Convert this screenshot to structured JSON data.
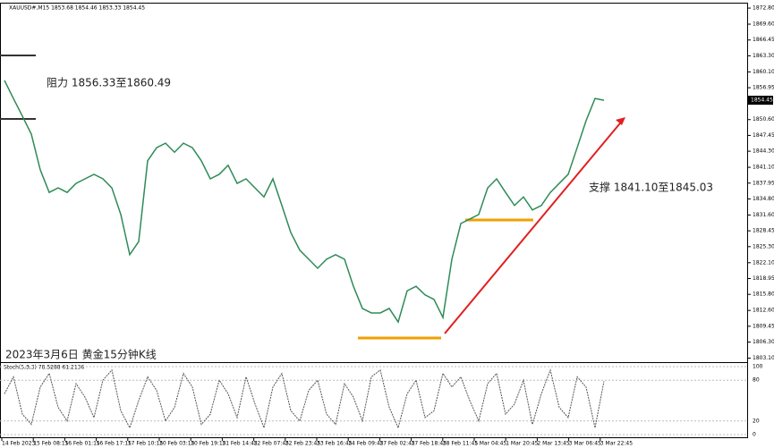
{
  "chart_data": {
    "type": "line",
    "header": "XAUUSD#,M15 1853.68 1854.46 1853.33 1854.45",
    "annotations": [
      "阻力 1856.33至1860.49",
      "支撑 1841.10至1845.03",
      "2023年3月6日 黄金15分钟K线"
    ],
    "current_price": 1854.45,
    "ylim": [
      1802.3,
      1873.7
    ],
    "yticks": [
      {
        "value": 1872.8,
        "label": "1872.80"
      },
      {
        "value": 1869.6,
        "label": "1869.60"
      },
      1866.45,
      {
        "value": 1863.3,
        "label": "1863.30"
      },
      {
        "value": 1860.1,
        "label": "1860.10"
      },
      1856.95,
      {
        "value": 1850.6,
        "label": "1850.60"
      },
      1847.45,
      {
        "value": 1844.3,
        "label": "1844.30"
      },
      {
        "value": 1841.1,
        "label": "1841.10"
      },
      1837.95,
      {
        "value": 1834.8,
        "label": "1834.80"
      },
      {
        "value": 1831.6,
        "label": "1831.60"
      },
      1828.45,
      {
        "value": 1825.3,
        "label": "1825.30"
      },
      {
        "value": 1822.1,
        "label": "1822.10"
      },
      1818.95,
      {
        "value": 1815.8,
        "label": "1815.80"
      },
      {
        "value": 1812.6,
        "label": "1812.60"
      },
      1809.45,
      {
        "value": 1806.3,
        "label": "1806.30"
      },
      {
        "value": 1803.1,
        "label": "1803.10"
      }
    ],
    "xtick_labels": [
      "14 Feb 2023",
      "15 Feb 08:15",
      "16 Feb 01:15",
      "16 Feb 17:15",
      "17 Feb 10:15",
      "20 Feb 03:15",
      "20 Feb 19:15",
      "21 Feb 14:45",
      "22 Feb 07:45",
      "22 Feb 23:45",
      "23 Feb 16:45",
      "24 Feb 09:45",
      "27 Feb 02:45",
      "27 Feb 18:45",
      "28 Feb 11:45",
      "1 Mar 04:45",
      "1 Mar 20:45",
      "2 Mar 13:45",
      "3 Mar 06:45",
      "3 Mar 22:45"
    ],
    "series": [
      {
        "color": "#2e8b57",
        "values": [
          1858.4,
          1854.8,
          1851.3,
          1847.7,
          1840.6,
          1836.1,
          1837.0,
          1836.1,
          1837.9,
          1838.8,
          1839.7,
          1838.8,
          1837.0,
          1831.7,
          1823.7,
          1826.3,
          1842.4,
          1845.0,
          1845.9,
          1844.1,
          1845.9,
          1845.0,
          1842.4,
          1838.8,
          1839.7,
          1841.5,
          1837.9,
          1838.8,
          1837.0,
          1835.2,
          1838.8,
          1833.5,
          1828.1,
          1824.6,
          1822.8,
          1821.0,
          1822.8,
          1823.7,
          1822.8,
          1817.4,
          1813.0,
          1812.1,
          1812.1,
          1813.0,
          1810.3,
          1816.5,
          1817.4,
          1815.7,
          1814.8,
          1811.2,
          1822.8,
          1829.9,
          1830.8,
          1831.7,
          1837.0,
          1838.8,
          1836.1,
          1833.5,
          1835.2,
          1832.6,
          1833.5,
          1836.1,
          1837.9,
          1839.7,
          1845.0,
          1850.4,
          1854.8,
          1854.45
        ]
      }
    ],
    "stoch": {
      "label": "Stoch(5,3,3) 78.5288 61.2136",
      "color": "#555555",
      "ylim": [
        0,
        100
      ],
      "yticks": [
        100,
        80,
        20,
        0
      ],
      "values": [
        60,
        85,
        30,
        15,
        70,
        90,
        40,
        20,
        75,
        55,
        25,
        80,
        95,
        35,
        10,
        50,
        85,
        65,
        20,
        40,
        90,
        70,
        15,
        30,
        80,
        60,
        25,
        85,
        45,
        10,
        70,
        90,
        35,
        20,
        65,
        80,
        30,
        15,
        75,
        55,
        20,
        85,
        95,
        40,
        10,
        60,
        80,
        25,
        35,
        90,
        70,
        85,
        50,
        20,
        75,
        90,
        30,
        45,
        80,
        15,
        60,
        95,
        40,
        25,
        85,
        70,
        10,
        78.53
      ]
    }
  }
}
